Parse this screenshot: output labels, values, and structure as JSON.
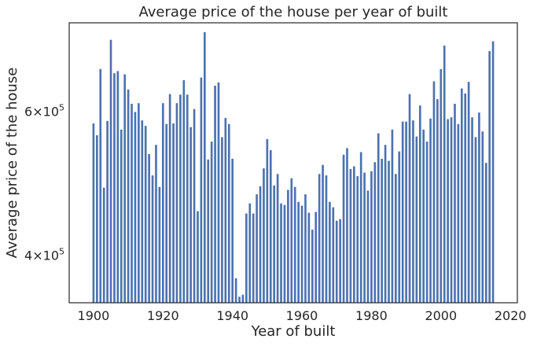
{
  "chart_data": {
    "type": "bar",
    "title": "Average price of the house per year of built",
    "xlabel": "Year of built",
    "ylabel": "Average price of the house",
    "yscale": "log",
    "xlim": [
      1893,
      2022
    ],
    "ylim": [
      350000,
      770000
    ],
    "xticks": [
      {
        "value": 1900,
        "label": "1900"
      },
      {
        "value": 1920,
        "label": "1920"
      },
      {
        "value": 1940,
        "label": "1940"
      },
      {
        "value": 1960,
        "label": "1960"
      },
      {
        "value": 1980,
        "label": "1980"
      },
      {
        "value": 2000,
        "label": "2000"
      },
      {
        "value": 2020,
        "label": "2020"
      }
    ],
    "yticks": [
      {
        "value": 400000,
        "base": "4",
        "exp": "5"
      },
      {
        "value": 600000,
        "base": "6",
        "exp": "5"
      }
    ],
    "grid": false,
    "legend": "none",
    "bar_color": "#4c72b0",
    "x": [
      1900,
      1901,
      1902,
      1903,
      1904,
      1905,
      1906,
      1907,
      1908,
      1909,
      1910,
      1911,
      1912,
      1913,
      1914,
      1915,
      1916,
      1917,
      1918,
      1919,
      1920,
      1921,
      1922,
      1923,
      1924,
      1925,
      1926,
      1927,
      1928,
      1929,
      1930,
      1931,
      1932,
      1933,
      1934,
      1935,
      1936,
      1937,
      1938,
      1939,
      1940,
      1941,
      1942,
      1943,
      1944,
      1945,
      1946,
      1947,
      1948,
      1949,
      1950,
      1951,
      1952,
      1953,
      1954,
      1955,
      1956,
      1957,
      1958,
      1959,
      1960,
      1961,
      1962,
      1963,
      1964,
      1965,
      1966,
      1967,
      1968,
      1969,
      1970,
      1971,
      1972,
      1973,
      1974,
      1975,
      1976,
      1977,
      1978,
      1979,
      1980,
      1981,
      1982,
      1983,
      1984,
      1985,
      1986,
      1987,
      1988,
      1989,
      1990,
      1991,
      1992,
      1993,
      1994,
      1995,
      1996,
      1997,
      1998,
      1999,
      2000,
      2001,
      2002,
      2003,
      2004,
      2005,
      2006,
      2007,
      2008,
      2009,
      2010,
      2011,
      2012,
      2013,
      2014,
      2015
    ],
    "values": [
      580000,
      561000,
      676000,
      484000,
      584000,
      734000,
      668000,
      672000,
      570000,
      666000,
      638000,
      613000,
      599000,
      614000,
      585000,
      576000,
      532000,
      501000,
      546000,
      485000,
      614000,
      579000,
      630000,
      580000,
      614000,
      629000,
      655000,
      629000,
      574000,
      604000,
      453000,
      660000,
      750000,
      524000,
      551000,
      645000,
      651000,
      558000,
      589000,
      579000,
      525000,
      375000,
      356000,
      358000,
      450000,
      463000,
      450000,
      475000,
      486000,
      511000,
      555000,
      538000,
      487000,
      503000,
      463000,
      461000,
      481000,
      497000,
      485000,
      465000,
      460000,
      475000,
      451000,
      430000,
      452000,
      503000,
      516000,
      501000,
      465000,
      458000,
      441000,
      443000,
      531000,
      541000,
      510000,
      514000,
      500000,
      535000,
      505000,
      480000,
      507000,
      520000,
      564000,
      525000,
      546000,
      522000,
      570000,
      503000,
      536000,
      583000,
      583000,
      630000,
      585000,
      559000,
      610000,
      570000,
      551000,
      588000,
      653000,
      621000,
      676000,
      722000,
      587000,
      590000,
      613000,
      579000,
      640000,
      631000,
      652000,
      590000,
      558000,
      598000,
      567000,
      519000,
      711000,
      731000
    ]
  }
}
